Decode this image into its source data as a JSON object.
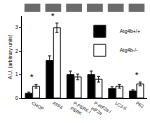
{
  "chart_data": {
    "type": "bar",
    "yaxis_label": "A.U. (arbitrary units)",
    "categories": [
      "CHOP",
      "ATF4",
      "P-PERK / PERK",
      "P-eIF2α / eIF2α",
      "LC3-II",
      "P62"
    ],
    "series": [
      {
        "name": "Atg4b+/+",
        "color": "#000000",
        "values": [
          0.2,
          1.6,
          1.0,
          1.0,
          0.4,
          0.3
        ],
        "errors": [
          0.05,
          0.2,
          0.15,
          0.15,
          0.08,
          0.05
        ]
      },
      {
        "name": "Atg4b-/-",
        "color": "#ffffff",
        "values": [
          0.5,
          3.0,
          0.9,
          0.8,
          0.5,
          0.6
        ],
        "errors": [
          0.08,
          0.2,
          0.12,
          0.12,
          0.08,
          0.08
        ]
      }
    ],
    "annotations": [
      {
        "text": "*",
        "category": "CHOP"
      },
      {
        "text": "*",
        "category": "ATF4"
      },
      {
        "text": "*",
        "category": "P62"
      }
    ],
    "ylim": [
      0,
      3.5
    ],
    "yticks": [
      0,
      1,
      2,
      3
    ],
    "legend": "top-right",
    "grid": false
  }
}
